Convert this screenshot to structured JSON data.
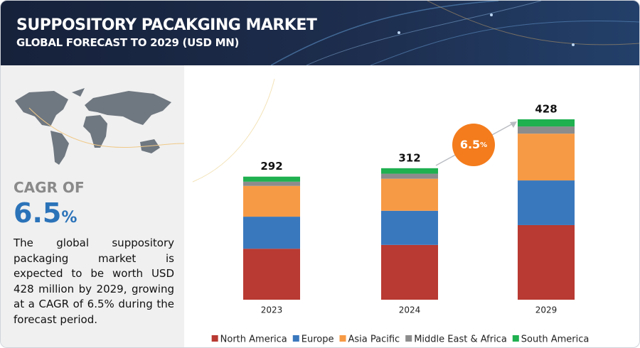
{
  "header": {
    "title": "SUPPOSITORY PACAKGING MARKET",
    "subtitle": "GLOBAL FORECAST TO 2029 (USD MN)"
  },
  "summary": {
    "cagr_label": "CAGR OF",
    "cagr_value": 6.5,
    "cagr_unit": "%",
    "text": "The global suppository packaging market is expected to be worth USD 428 million by 2029, growing at a CAGR of 6.5% during the forecast period."
  },
  "chart_data": {
    "type": "stacked_bar",
    "categories": [
      "2023",
      "2024",
      "2029"
    ],
    "series": [
      {
        "name": "North America",
        "color": "#b83a32",
        "values": [
          121,
          130,
          177
        ]
      },
      {
        "name": "Europe",
        "color": "#3a78bd",
        "values": [
          76,
          81,
          106
        ]
      },
      {
        "name": "Asia Pacific",
        "color": "#f79a45",
        "values": [
          73,
          76,
          111
        ]
      },
      {
        "name": "Middle East & Africa",
        "color": "#8c8c8c",
        "values": [
          10,
          12,
          17
        ]
      },
      {
        "name": "South America",
        "color": "#1fb050",
        "values": [
          12,
          13,
          17
        ]
      }
    ],
    "totals": [
      292,
      312,
      428
    ],
    "annotation": {
      "value": 6.5,
      "unit": "%"
    },
    "legend": "bottom"
  }
}
